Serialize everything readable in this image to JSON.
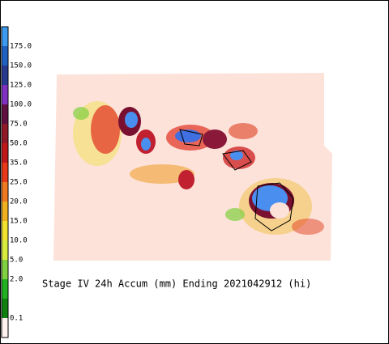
{
  "legend": {
    "labels": [
      "175.0",
      "150.0",
      "125.0",
      "100.0",
      "75.0",
      "50.0",
      "35.0",
      "25.0",
      "20.0",
      "15.0",
      "10.0",
      "5.0",
      "2.0",
      "0.1"
    ]
  },
  "caption": "Stage IV 24h Accum (mm) Ending 2021042912 (hi)"
}
